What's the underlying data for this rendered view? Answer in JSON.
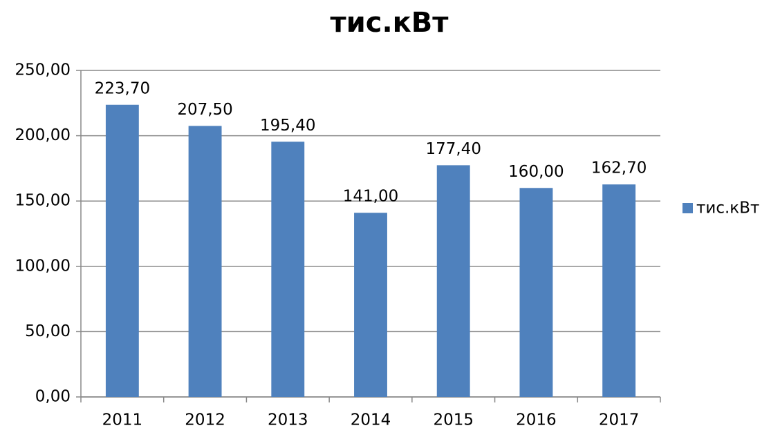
{
  "chart_data": {
    "type": "bar",
    "title": "тис.кВт",
    "categories": [
      "2011",
      "2012",
      "2013",
      "2014",
      "2015",
      "2016",
      "2017"
    ],
    "series": [
      {
        "name": "тис.кВт",
        "color": "#4f81bd",
        "values": [
          223.7,
          207.5,
          195.4,
          141.0,
          177.4,
          160.0,
          162.7
        ],
        "value_labels": [
          "223,70",
          "207,50",
          "195,40",
          "141,00",
          "177,40",
          "160,00",
          "162,70"
        ]
      }
    ],
    "ylim": [
      0,
      250
    ],
    "yticks": [
      {
        "value": 0,
        "label": "0,00"
      },
      {
        "value": 50,
        "label": "50,00"
      },
      {
        "value": 100,
        "label": "100,00"
      },
      {
        "value": 150,
        "label": "150,00"
      },
      {
        "value": 200,
        "label": "200,00"
      },
      {
        "value": 250,
        "label": "250,00"
      }
    ],
    "grid": true,
    "legend": "right"
  }
}
